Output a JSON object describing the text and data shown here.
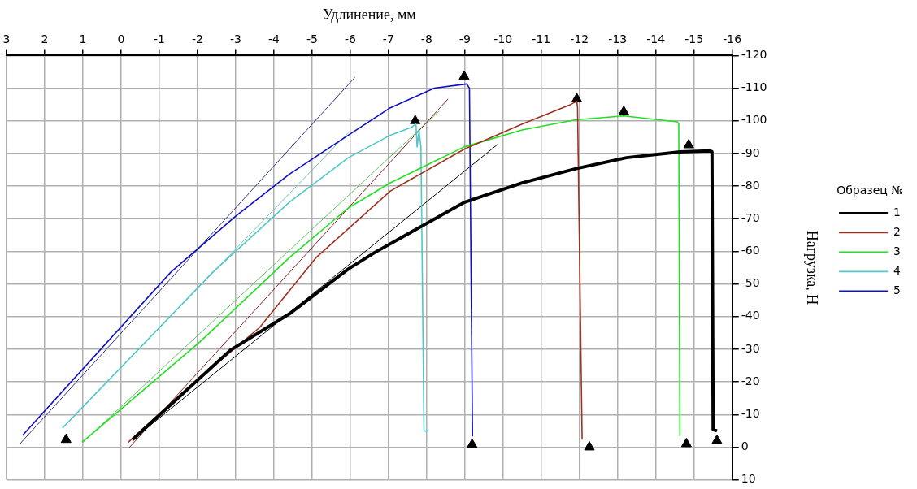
{
  "chart_data": {
    "type": "line",
    "xlabel": "Удлинение, мм",
    "ylabel": "Нагрузка, Н",
    "legend_title": "Образец №",
    "legend": "right",
    "grid": true,
    "xlim": [
      3,
      -16
    ],
    "xticks": [
      3,
      2,
      1,
      0,
      -1,
      -2,
      -3,
      -4,
      -5,
      -6,
      -7,
      -8,
      -9,
      -10,
      -11,
      -12,
      -13,
      -14,
      -15,
      -16
    ],
    "ylim": [
      10,
      -120
    ],
    "yticks": [
      10,
      0,
      -10,
      -20,
      -30,
      -40,
      -50,
      -60,
      -70,
      -80,
      -90,
      -100,
      -110,
      -120
    ],
    "series": [
      {
        "name": "1",
        "color": "#000000",
        "x": [
          -0.3,
          -2.86,
          -4.4,
          -5.95,
          -6.65,
          -8.98,
          -10.5,
          -11.93,
          -13.23,
          -14.63,
          -15.42,
          -15.47,
          -15.5,
          -15.6
        ],
        "values": [
          -2.3,
          -29.7,
          -40.8,
          -54.6,
          -59.7,
          -75,
          -81,
          -85.4,
          -88.7,
          -90.5,
          -90.8,
          -90.5,
          -5.4,
          -5
        ]
      },
      {
        "name": "2",
        "color": "#a03020",
        "x": [
          -0.19,
          -1.7,
          -3.63,
          -5.1,
          -7.05,
          -8.98,
          -10.5,
          -11.77,
          -11.93,
          -11.95,
          -12.07
        ],
        "values": [
          -1.5,
          -17.7,
          -36.7,
          -58,
          -78.5,
          -91.3,
          -99,
          -105,
          -106,
          -104,
          -2.3
        ]
      },
      {
        "name": "3",
        "color": "#20e020",
        "x": [
          1.02,
          -2.07,
          -4.4,
          -5.95,
          -7.05,
          -8.98,
          -10.5,
          -11.9,
          -13.16,
          -14.56,
          -14.6,
          -14.63
        ],
        "values": [
          -1.5,
          -32.3,
          -58,
          -73.3,
          -81,
          -92,
          -97.2,
          -100.3,
          -101.5,
          -99.7,
          -99,
          -3.3
        ]
      },
      {
        "name": "4",
        "color": "#50c8c8",
        "x": [
          1.53,
          -2.4,
          -4.4,
          -5.95,
          -7.05,
          -7.6,
          -7.72,
          -7.75,
          -7.8,
          -7.85,
          -7.93,
          -8.05
        ],
        "values": [
          -5.9,
          -53.6,
          -75,
          -88.7,
          -95.6,
          -98,
          -99,
          -92,
          -97,
          -92,
          -4.9,
          -5
        ]
      },
      {
        "name": "5",
        "color": "#1010c0",
        "x": [
          2.58,
          -1.3,
          -3.0,
          -4.4,
          -5.95,
          -7.05,
          -8.2,
          -9.05,
          -9.12,
          -9.2
        ],
        "values": [
          -3.6,
          -53.6,
          -70.8,
          -83.6,
          -95.6,
          -104,
          -110,
          -111.3,
          -110,
          -3.3
        ]
      },
      {
        "type": "line",
        "color": "#000000",
        "x": [
          -0.3,
          -9.86
        ],
        "values": [
          -2.3,
          -92.8
        ]
      },
      {
        "type": "line",
        "color": "#802020",
        "x": [
          -0.2,
          -8.56
        ],
        "values": [
          0.3,
          -106.7
        ]
      },
      {
        "type": "line",
        "color": "#60c060",
        "x": [
          1.0,
          -8.33
        ],
        "values": [
          -1.5,
          -103
        ]
      },
      {
        "type": "line",
        "color": "#70c0b0",
        "x": [
          1.53,
          -5.95
        ],
        "values": [
          -5.9,
          -96.4
        ]
      },
      {
        "type": "line",
        "color": "#303080",
        "x": [
          2.65,
          -6.12
        ],
        "values": [
          -1,
          -113.3
        ]
      },
      {
        "type": "scatter",
        "color": "#000000",
        "marker": "triangle",
        "x": [
          1.44,
          -7.7,
          -8.98,
          -9.19,
          -11.93,
          -12.26,
          -13.16,
          -14.8,
          -14.86,
          -15.6
        ],
        "values": [
          -2.3,
          -100,
          -113.6,
          -0.8,
          -106.7,
          0,
          -102.8,
          -1,
          -92.6,
          -2
        ]
      }
    ]
  }
}
